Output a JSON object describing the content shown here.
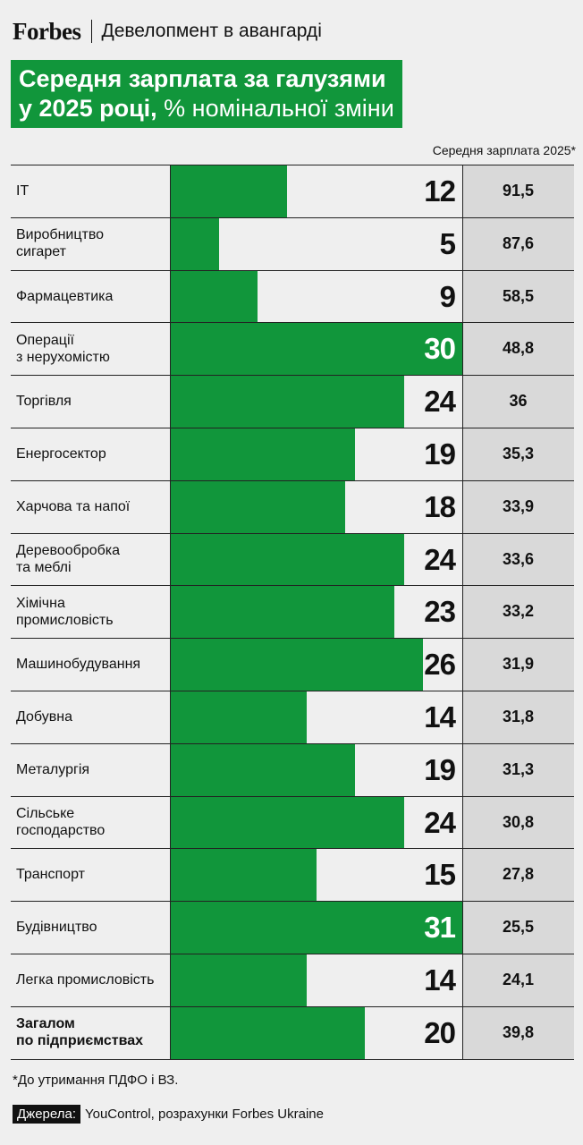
{
  "header": {
    "brand": "Forbes",
    "section": "Девелопмент в авангарді"
  },
  "title": {
    "line1": "Середня зарплата за галузями",
    "line2_bold": "у 2025 році,",
    "line2_rest": " % номінальної зміни"
  },
  "column_header": "Середня зарплата 2025*",
  "colors": {
    "bar": "#11963b",
    "salary_bg": "#d9d9d9"
  },
  "chart_data": {
    "type": "bar",
    "orientation": "horizontal",
    "title": "Середня зарплата за галузями у 2025 році, % номінальної зміни",
    "xlim": [
      0,
      30
    ],
    "categories": [
      "IT",
      "Виробництво сигарет",
      "Фармацевтика",
      "Операції з нерухомістю",
      "Торгівля",
      "Енергосектор",
      "Харчова та напої",
      "Деревообробка та меблі",
      "Хімічна промисловість",
      "Машинобудування",
      "Добувна",
      "Металургія",
      "Сільське господарство",
      "Транспорт",
      "Будівництво",
      "Легка промисловість",
      "Загалом по підприємствах"
    ],
    "category_lines": [
      [
        "IT"
      ],
      [
        "Виробництво",
        "сигарет"
      ],
      [
        "Фармацевтика"
      ],
      [
        "Операції",
        "з нерухомістю"
      ],
      [
        "Торгівля"
      ],
      [
        "Енергосектор"
      ],
      [
        "Харчова та напої"
      ],
      [
        "Деревообробка",
        "та меблі"
      ],
      [
        "Хімічна",
        "промисловість"
      ],
      [
        "Машинобудування"
      ],
      [
        "Добувна"
      ],
      [
        "Металургія"
      ],
      [
        "Сільське",
        "господарство"
      ],
      [
        "Транспорт"
      ],
      [
        "Будівництво"
      ],
      [
        "Легка промисловість"
      ],
      [
        "Загалом",
        "по підприємствах"
      ]
    ],
    "series": [
      {
        "name": "% номінальної зміни",
        "values": [
          12,
          5,
          9,
          30,
          24,
          19,
          18,
          24,
          23,
          26,
          14,
          19,
          24,
          15,
          31,
          14,
          20
        ]
      },
      {
        "name": "Середня зарплата 2025*",
        "values": [
          "91,5",
          "87,6",
          "58,5",
          "48,8",
          "36",
          "35,3",
          "33,9",
          "33,6",
          "33,2",
          "31,9",
          "31,8",
          "31,3",
          "30,8",
          "27,8",
          "25,5",
          "24,1",
          "39,8"
        ]
      }
    ]
  },
  "footnote": "*До утримання ПДФО і ВЗ.",
  "source": {
    "label": "Джерела:",
    "text": "YouControl, розрахунки Forbes Ukraine"
  }
}
